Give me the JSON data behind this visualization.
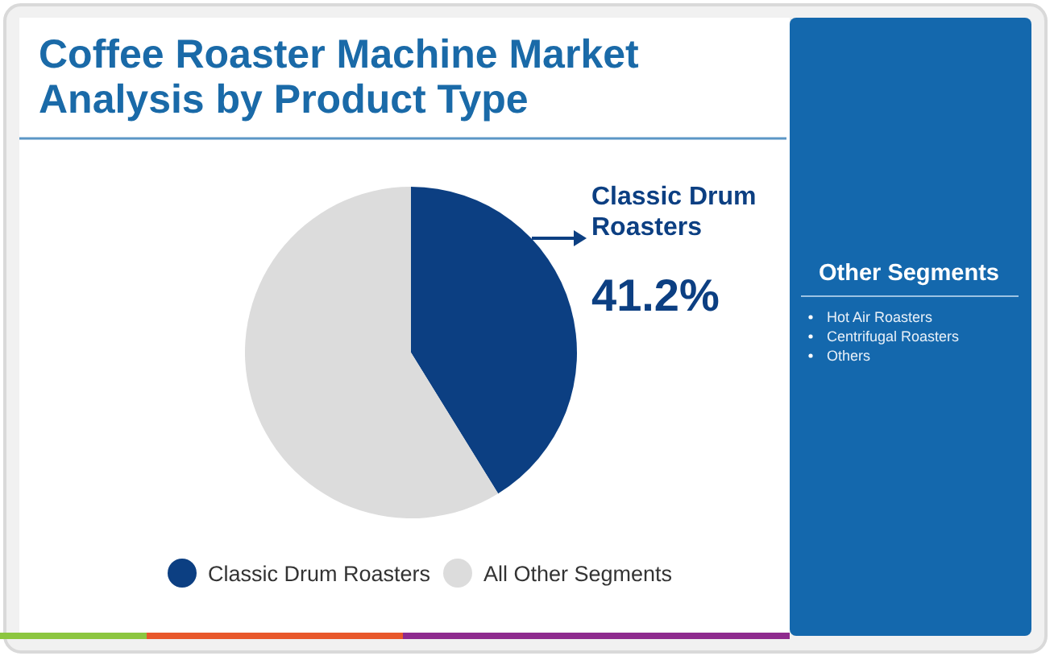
{
  "chart_data": {
    "type": "pie",
    "title": "Coffee Roaster Machine Market Analysis by Product Type",
    "categories": [
      "Classic Drum Roasters",
      "All Other Segments"
    ],
    "values": [
      41.2,
      58.8
    ],
    "colors": [
      "#0c3f82",
      "#dcdcdc"
    ],
    "value_labels": [
      "41.2%",
      null
    ],
    "legend": "bottom",
    "annotations": [
      "Other Segments",
      "Hot Air Roasters",
      "Centrifugal Roasters",
      "Others"
    ]
  }
}
